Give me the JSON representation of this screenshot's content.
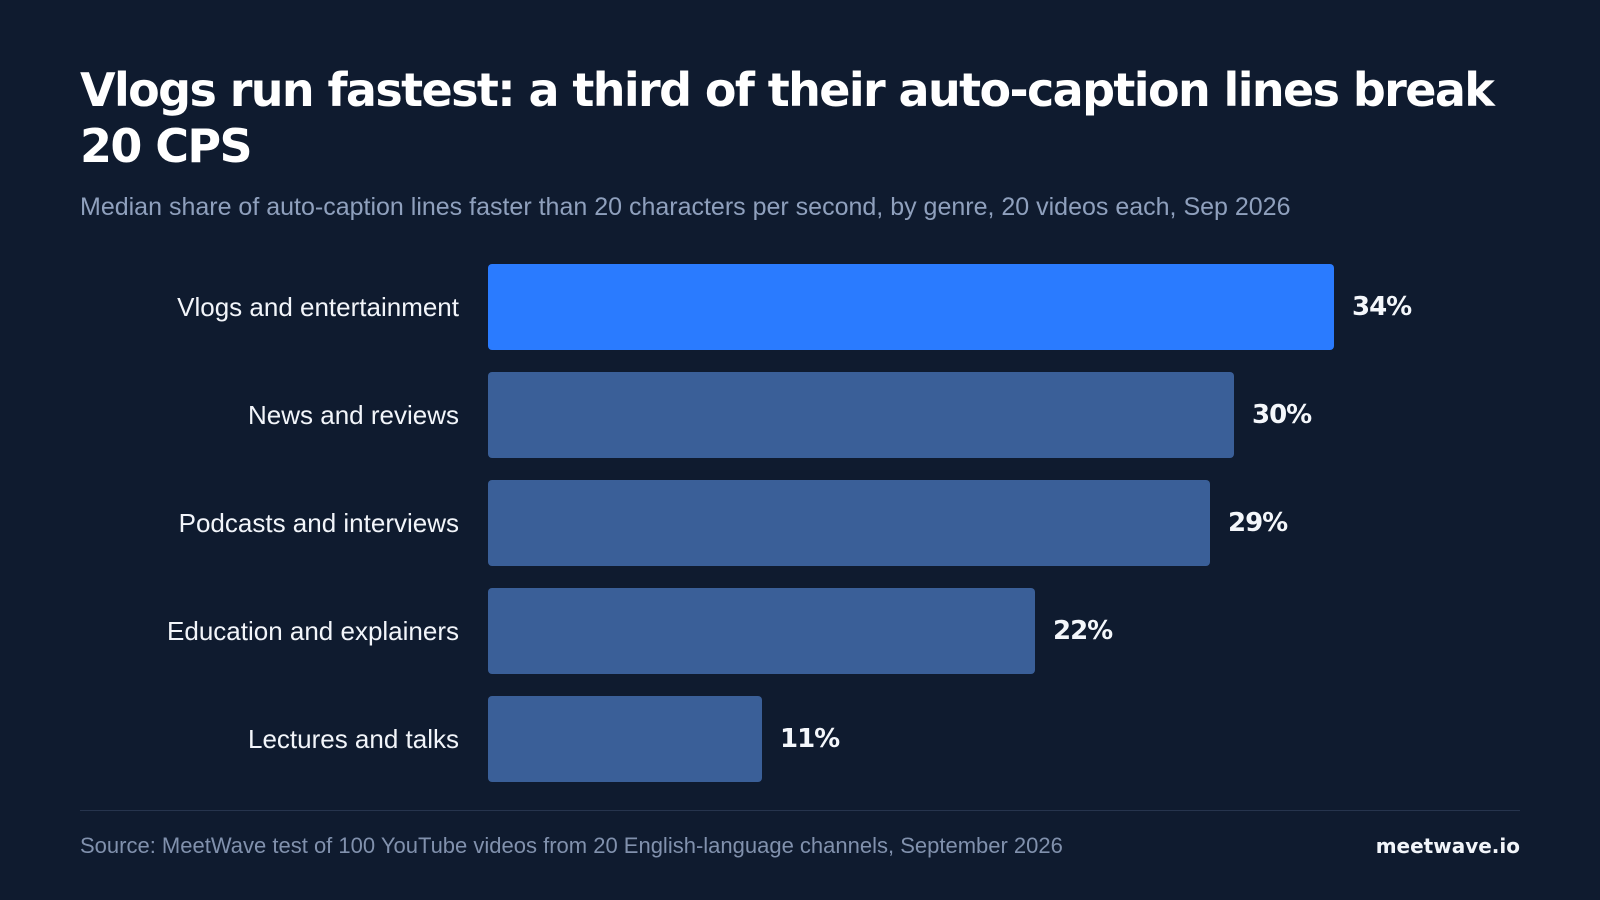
{
  "chart_data": {
    "type": "bar",
    "orientation": "horizontal",
    "title": "Vlogs run fastest: a third of their auto-caption lines break 20 CPS",
    "subtitle": "Median share of auto-caption lines faster than 20 characters per second, by genre, 20 videos each, Sep 2026",
    "categories": [
      "Vlogs and entertainment",
      "News and reviews",
      "Podcasts and interviews",
      "Education and explainers",
      "Lectures and talks"
    ],
    "values": [
      34,
      30,
      29,
      22,
      11
    ],
    "value_labels": [
      "34%",
      "30%",
      "29%",
      "22%",
      "11%"
    ],
    "unit": "%",
    "xlim": [
      0,
      34
    ],
    "grid": false,
    "legend": "none",
    "colors": {
      "highlight": "#2a7bff",
      "default": "#3a5f98",
      "background": "#0f1b2f"
    }
  },
  "footer": {
    "source": "Source: MeetWave test of 100 YouTube videos from 20 English-language channels, September 2026",
    "brand": "meetwave.io"
  }
}
